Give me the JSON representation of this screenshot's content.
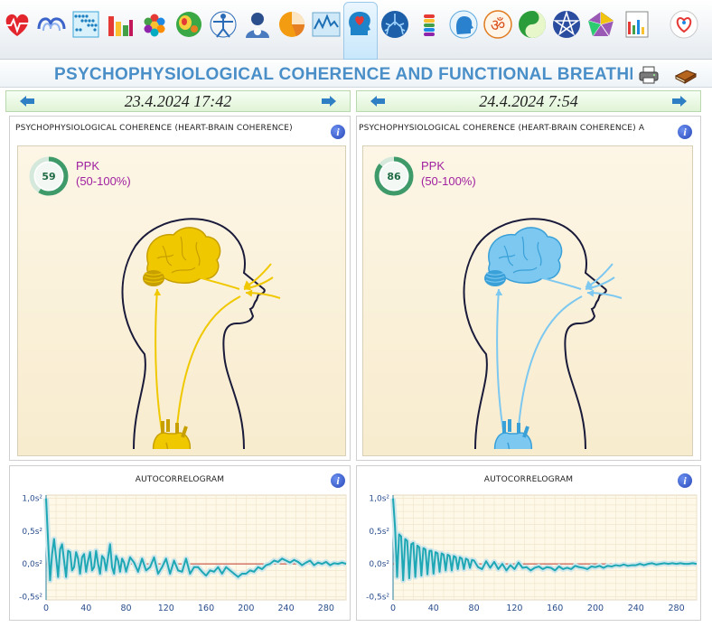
{
  "toolbar": {
    "items": [
      {
        "icon": "heart-rate-icon"
      },
      {
        "icon": "waves-icon"
      },
      {
        "icon": "scatter-grid-icon"
      },
      {
        "icon": "bar-chart-icon"
      },
      {
        "icon": "hexagons-icon"
      },
      {
        "icon": "heatmap-icon"
      },
      {
        "icon": "vitruvian-man-icon"
      },
      {
        "icon": "person-icon"
      },
      {
        "icon": "pie-chart-icon"
      },
      {
        "icon": "line-chart-icon"
      },
      {
        "icon": "head-heart-icon"
      },
      {
        "icon": "lungs-icon"
      },
      {
        "icon": "spine-icon"
      },
      {
        "icon": "head-profile-icon"
      },
      {
        "icon": "om-icon"
      },
      {
        "icon": "yin-yang-icon"
      },
      {
        "icon": "pentagram-icon"
      },
      {
        "icon": "pentagon-gem-icon"
      },
      {
        "icon": "report-bars-icon"
      },
      {
        "icon": "logo-icon"
      }
    ],
    "active_index": 10
  },
  "header": {
    "title": "PSYCHOPHYSIOLOGICAL COHERENCE AND FUNCTIONAL BREATHI"
  },
  "left": {
    "date": "23.4.2024 17:42",
    "coherence": {
      "title": "PSYCHOPHYSIOLOGICAL COHERENCE (HEART-BRAIN COHERENCE)",
      "value": "59",
      "label": "PPK",
      "range": "(50-100%)",
      "value_fraction": 0.59,
      "color": "#f0c800",
      "dark": "#c7a000"
    },
    "autocorrelogram": {
      "title": "AUTOCORRELOGRAM",
      "y_ticks": [
        "1,0s²",
        "0,5s²",
        "0,0s²",
        "-0,5s²"
      ],
      "x_ticks": [
        "0",
        "40",
        "80",
        "120",
        "160",
        "200",
        "240",
        "280"
      ]
    }
  },
  "right": {
    "date": "24.4.2024 7:54",
    "coherence": {
      "title": "PSYCHOPHYSIOLOGICAL COHERENCE (HEART-BRAIN COHERENCE) A",
      "value": "86",
      "label": "PPK",
      "range": "(50-100%)",
      "value_fraction": 0.86,
      "color": "#7cc8f0",
      "dark": "#3aa0d8"
    },
    "autocorrelogram": {
      "title": "AUTOCORRELOGRAM",
      "y_ticks": [
        "1,0s²",
        "0,5s²",
        "0,0s²",
        "-0,5s²"
      ],
      "x_ticks": [
        "0",
        "40",
        "80",
        "120",
        "160",
        "200",
        "240",
        "280"
      ]
    }
  },
  "chart_data": [
    {
      "type": "line",
      "title": "AUTOCORRELOGRAM",
      "xlim": [
        0,
        300
      ],
      "ylim": [
        -0.55,
        1.05
      ],
      "series": [
        {
          "x": [
            0,
            2,
            4,
            6,
            8,
            10,
            12,
            14,
            16,
            18,
            20,
            22,
            24,
            26,
            28,
            30,
            32,
            34,
            36,
            38,
            40,
            42,
            44,
            46,
            48,
            50,
            52,
            54,
            56,
            58,
            60,
            62,
            64,
            66,
            68,
            70,
            72,
            74,
            76,
            78,
            80,
            84,
            88,
            92,
            96,
            100,
            104,
            108,
            112,
            116,
            120,
            124,
            128,
            132,
            136,
            140,
            144,
            148,
            152,
            156,
            160,
            164,
            168,
            172,
            176,
            180,
            184,
            188,
            192,
            196,
            200,
            204,
            208,
            212,
            216,
            220,
            224,
            228,
            232,
            236,
            240,
            244,
            248,
            252,
            256,
            260,
            264,
            268,
            272,
            276,
            280,
            284,
            288,
            292,
            296,
            300
          ],
          "y": [
            1.0,
            0.35,
            -0.25,
            0.15,
            0.38,
            0.1,
            -0.2,
            0.22,
            0.3,
            0.05,
            -0.2,
            0.2,
            0.18,
            -0.1,
            -0.05,
            0.18,
            0.08,
            -0.15,
            0.1,
            0.15,
            -0.12,
            0.05,
            0.18,
            -0.1,
            -0.05,
            0.2,
            0.0,
            -0.15,
            0.12,
            0.08,
            -0.1,
            0.1,
            0.3,
            -0.05,
            -0.15,
            0.12,
            0.05,
            -0.12,
            0.08,
            0.02,
            -0.12,
            0.1,
            0.02,
            -0.12,
            0.08,
            -0.1,
            -0.05,
            0.1,
            -0.15,
            -0.05,
            0.08,
            -0.15,
            0.05,
            -0.1,
            -0.12,
            0.08,
            -0.15,
            -0.05,
            -0.05,
            -0.12,
            -0.18,
            -0.1,
            -0.12,
            -0.05,
            -0.15,
            -0.05,
            -0.1,
            -0.15,
            -0.2,
            -0.15,
            -0.15,
            -0.1,
            -0.12,
            -0.05,
            -0.08,
            -0.02,
            0.0,
            0.05,
            0.03,
            0.08,
            0.05,
            0.02,
            0.06,
            0.03,
            -0.02,
            0.02,
            0.05,
            -0.02,
            0.02,
            0.0,
            0.03,
            -0.02,
            0.01,
            0.0,
            0.02,
            0.0
          ]
        }
      ]
    },
    {
      "type": "line",
      "title": "AUTOCORRELOGRAM",
      "xlim": [
        0,
        300
      ],
      "ylim": [
        -0.55,
        1.05
      ],
      "series": [
        {
          "x": [
            0,
            2,
            4,
            6,
            8,
            10,
            12,
            14,
            16,
            18,
            20,
            22,
            24,
            26,
            28,
            30,
            32,
            34,
            36,
            38,
            40,
            42,
            44,
            46,
            48,
            50,
            52,
            54,
            56,
            58,
            60,
            62,
            64,
            66,
            68,
            70,
            72,
            74,
            76,
            78,
            80,
            84,
            88,
            92,
            96,
            100,
            104,
            108,
            112,
            116,
            120,
            124,
            128,
            132,
            136,
            140,
            144,
            148,
            152,
            156,
            160,
            164,
            168,
            172,
            176,
            180,
            184,
            188,
            192,
            196,
            200,
            204,
            208,
            212,
            216,
            220,
            224,
            228,
            232,
            236,
            240,
            244,
            248,
            252,
            256,
            260,
            264,
            268,
            272,
            276,
            280,
            284,
            288,
            292,
            296,
            300
          ],
          "y": [
            1.0,
            0.55,
            -0.2,
            0.45,
            0.42,
            -0.25,
            0.38,
            0.35,
            -0.22,
            0.3,
            0.32,
            -0.2,
            0.28,
            0.25,
            -0.18,
            0.24,
            0.22,
            -0.16,
            0.2,
            0.2,
            -0.15,
            0.18,
            0.16,
            -0.12,
            0.16,
            0.14,
            -0.1,
            0.14,
            0.12,
            -0.1,
            0.12,
            0.1,
            -0.08,
            0.1,
            0.08,
            -0.08,
            0.08,
            0.06,
            -0.06,
            0.06,
            0.05,
            -0.05,
            -0.08,
            0.04,
            -0.06,
            0.03,
            -0.08,
            0.0,
            -0.1,
            -0.02,
            -0.08,
            0.02,
            -0.06,
            -0.05,
            -0.1,
            -0.06,
            -0.04,
            -0.08,
            -0.05,
            -0.06,
            -0.1,
            -0.04,
            -0.08,
            -0.06,
            -0.08,
            -0.03,
            -0.05,
            -0.06,
            -0.08,
            -0.04,
            -0.05,
            -0.03,
            -0.06,
            -0.03,
            -0.04,
            -0.02,
            -0.03,
            -0.01,
            -0.03,
            -0.02,
            -0.02,
            0.0,
            -0.02,
            0.0,
            0.01,
            -0.01,
            0.0,
            0.01,
            0.0,
            0.01,
            0.0,
            0.01,
            0.0,
            0.0,
            0.01,
            0.0
          ]
        }
      ]
    }
  ]
}
